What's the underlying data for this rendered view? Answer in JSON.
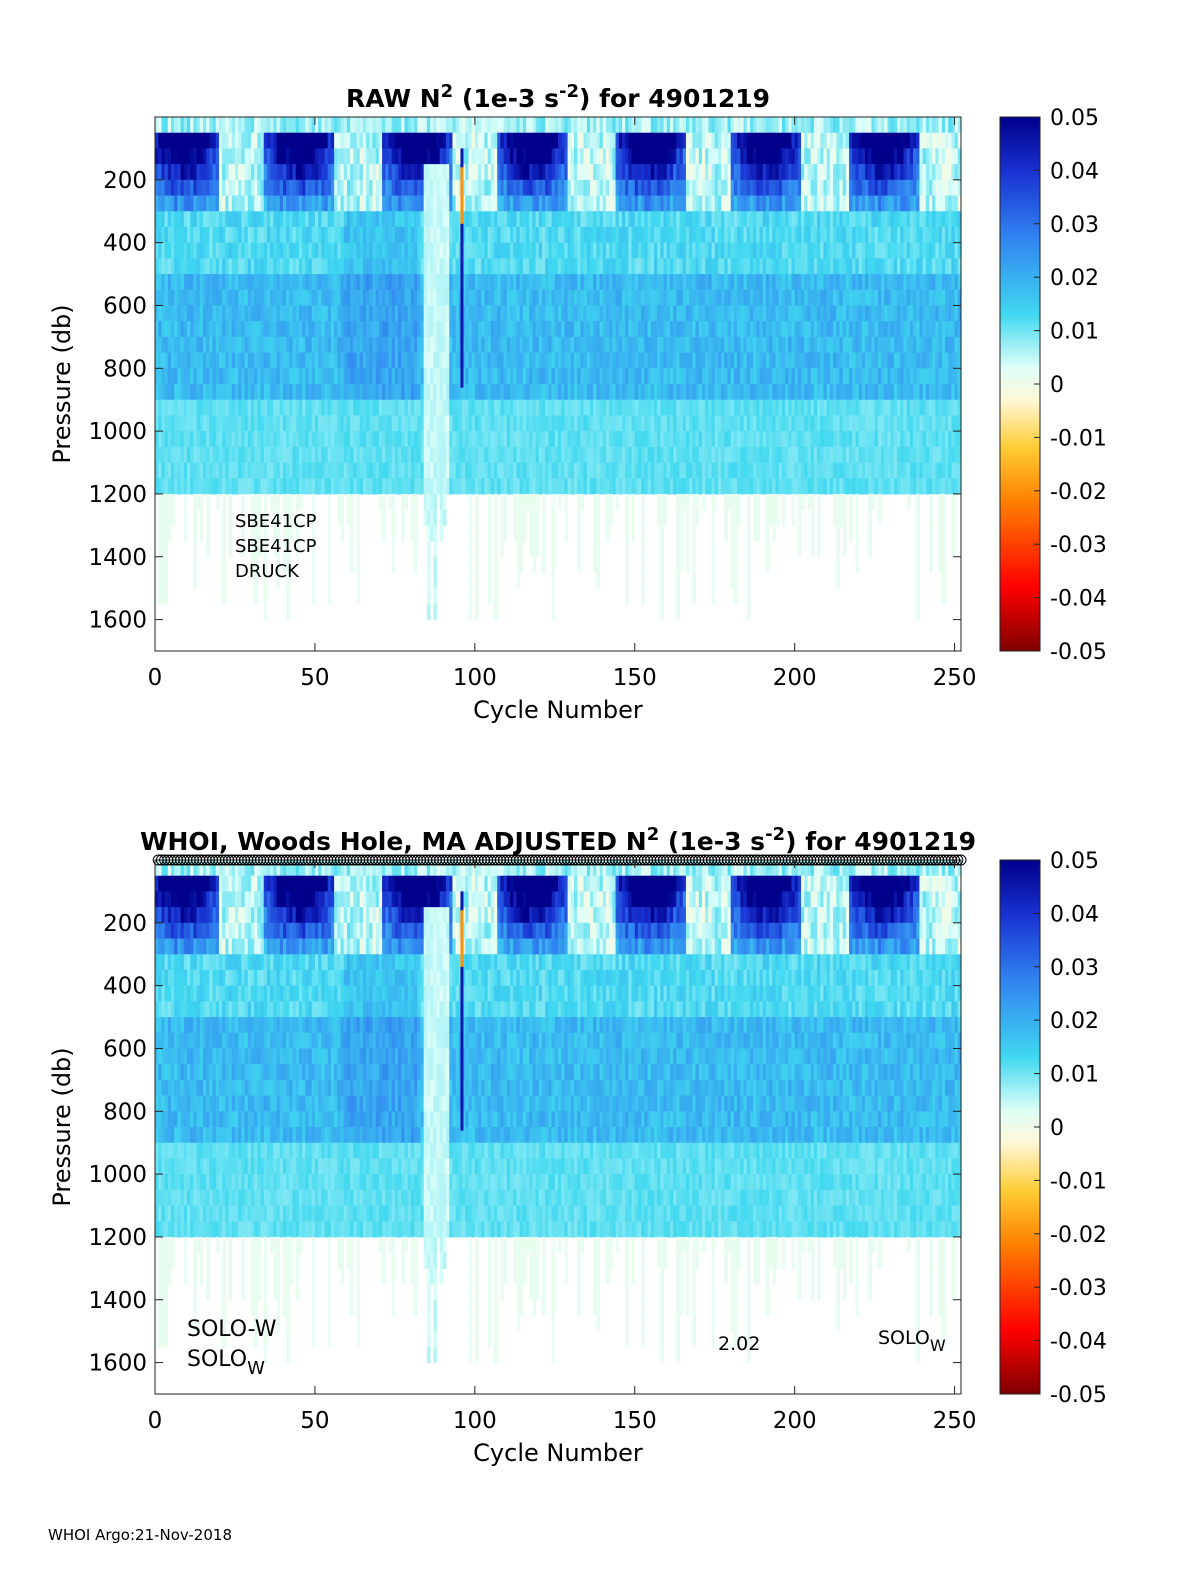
{
  "footer": "WHOI Argo:21-Nov-2018",
  "colorbar": {
    "min": -0.05,
    "max": 0.05,
    "ticks": [
      "0.05",
      "0.04",
      "0.03",
      "0.02",
      "0.01",
      "0",
      "-0.01",
      "-0.02",
      "-0.03",
      "-0.04",
      "-0.05"
    ]
  },
  "chart_data": [
    {
      "type": "heatmap",
      "title_parts": {
        "prefix": "RAW N",
        "sup1": "2",
        "middle": " (1e-3 s",
        "sup2": "-2",
        "suffix": ") for 4901219"
      },
      "xlabel": "Cycle Number",
      "ylabel": "Pressure (db)",
      "xlim": [
        0,
        252
      ],
      "ylim": [
        1700,
        0
      ],
      "xticks": [
        0,
        50,
        100,
        150,
        200,
        250
      ],
      "yticks": [
        200,
        400,
        600,
        800,
        1000,
        1200,
        1400,
        1600
      ],
      "annotations": [
        "SBE41CP",
        "SBE41CP",
        "DRUCK"
      ],
      "series_description": "N2 values per cycle and pressure level; ~0.005-0.04 near surface, 0.01-0.02 at 500-900 db, near 0 below 1200 db"
    },
    {
      "type": "heatmap",
      "title_parts": {
        "prefix": "WHOI, Woods Hole, MA  ADJUSTED N",
        "sup1": "2",
        "middle": " (1e-3 s",
        "sup2": "-2",
        "suffix": ") for 4901219"
      },
      "xlabel": "Cycle Number",
      "ylabel": "Pressure (db)",
      "xlim": [
        0,
        252
      ],
      "ylim": [
        1700,
        0
      ],
      "xticks": [
        0,
        50,
        100,
        150,
        200,
        250
      ],
      "yticks": [
        200,
        400,
        600,
        800,
        1000,
        1200,
        1400,
        1600
      ],
      "annotations": {
        "float_type": "SOLO-W",
        "solo_base": "SOLO",
        "solo_sub": "W",
        "version": "2.02",
        "solo2_base": "SOLO",
        "solo2_sub": "W"
      },
      "series_description": "Adjusted N2 values per cycle and pressure level; same structure as raw"
    }
  ]
}
